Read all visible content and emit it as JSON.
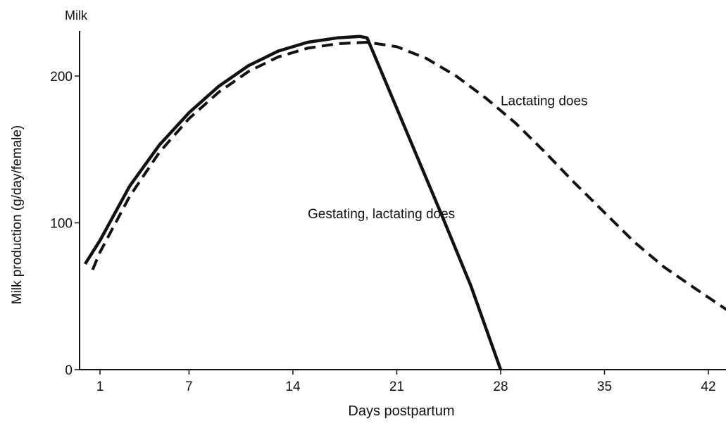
{
  "chart_data": {
    "type": "line",
    "title": "",
    "corner_label": "Milk",
    "xlabel": "Days postpartum",
    "ylabel": "Milk production (g/day/female)",
    "xlim": [
      0,
      43.5
    ],
    "ylim": [
      0,
      230
    ],
    "x_ticks": [
      1,
      7,
      14,
      21,
      28,
      35,
      42
    ],
    "y_ticks": [
      0,
      100,
      200
    ],
    "grid": false,
    "series": [
      {
        "name": "Gestating, lactating does",
        "style": "solid",
        "color": "#111111",
        "x": [
          0,
          1,
          3,
          5,
          7,
          9,
          11,
          13,
          15,
          17,
          18.5,
          19,
          20,
          22,
          24,
          26,
          28
        ],
        "y": [
          72,
          88,
          125,
          153,
          175,
          193,
          207,
          217,
          223,
          226,
          227,
          226,
          202,
          154,
          106,
          57,
          0
        ]
      },
      {
        "name": "Lactating does",
        "style": "dashed",
        "color": "#111111",
        "x": [
          0.5,
          1,
          3,
          5,
          7,
          9,
          11,
          13,
          15,
          17,
          19,
          21,
          23,
          25,
          27,
          29,
          31,
          33,
          35,
          37,
          39,
          41,
          43.5
        ],
        "y": [
          68,
          80,
          118,
          148,
          171,
          189,
          203,
          213,
          219,
          222,
          223,
          220,
          212,
          200,
          185,
          168,
          148,
          127,
          107,
          87,
          70,
          56,
          39
        ]
      }
    ],
    "annotations": [
      {
        "text": "Lactating does",
        "x": 28,
        "y": 180
      },
      {
        "text": "Gestating, lactating does",
        "x": 15,
        "y": 103
      }
    ]
  }
}
